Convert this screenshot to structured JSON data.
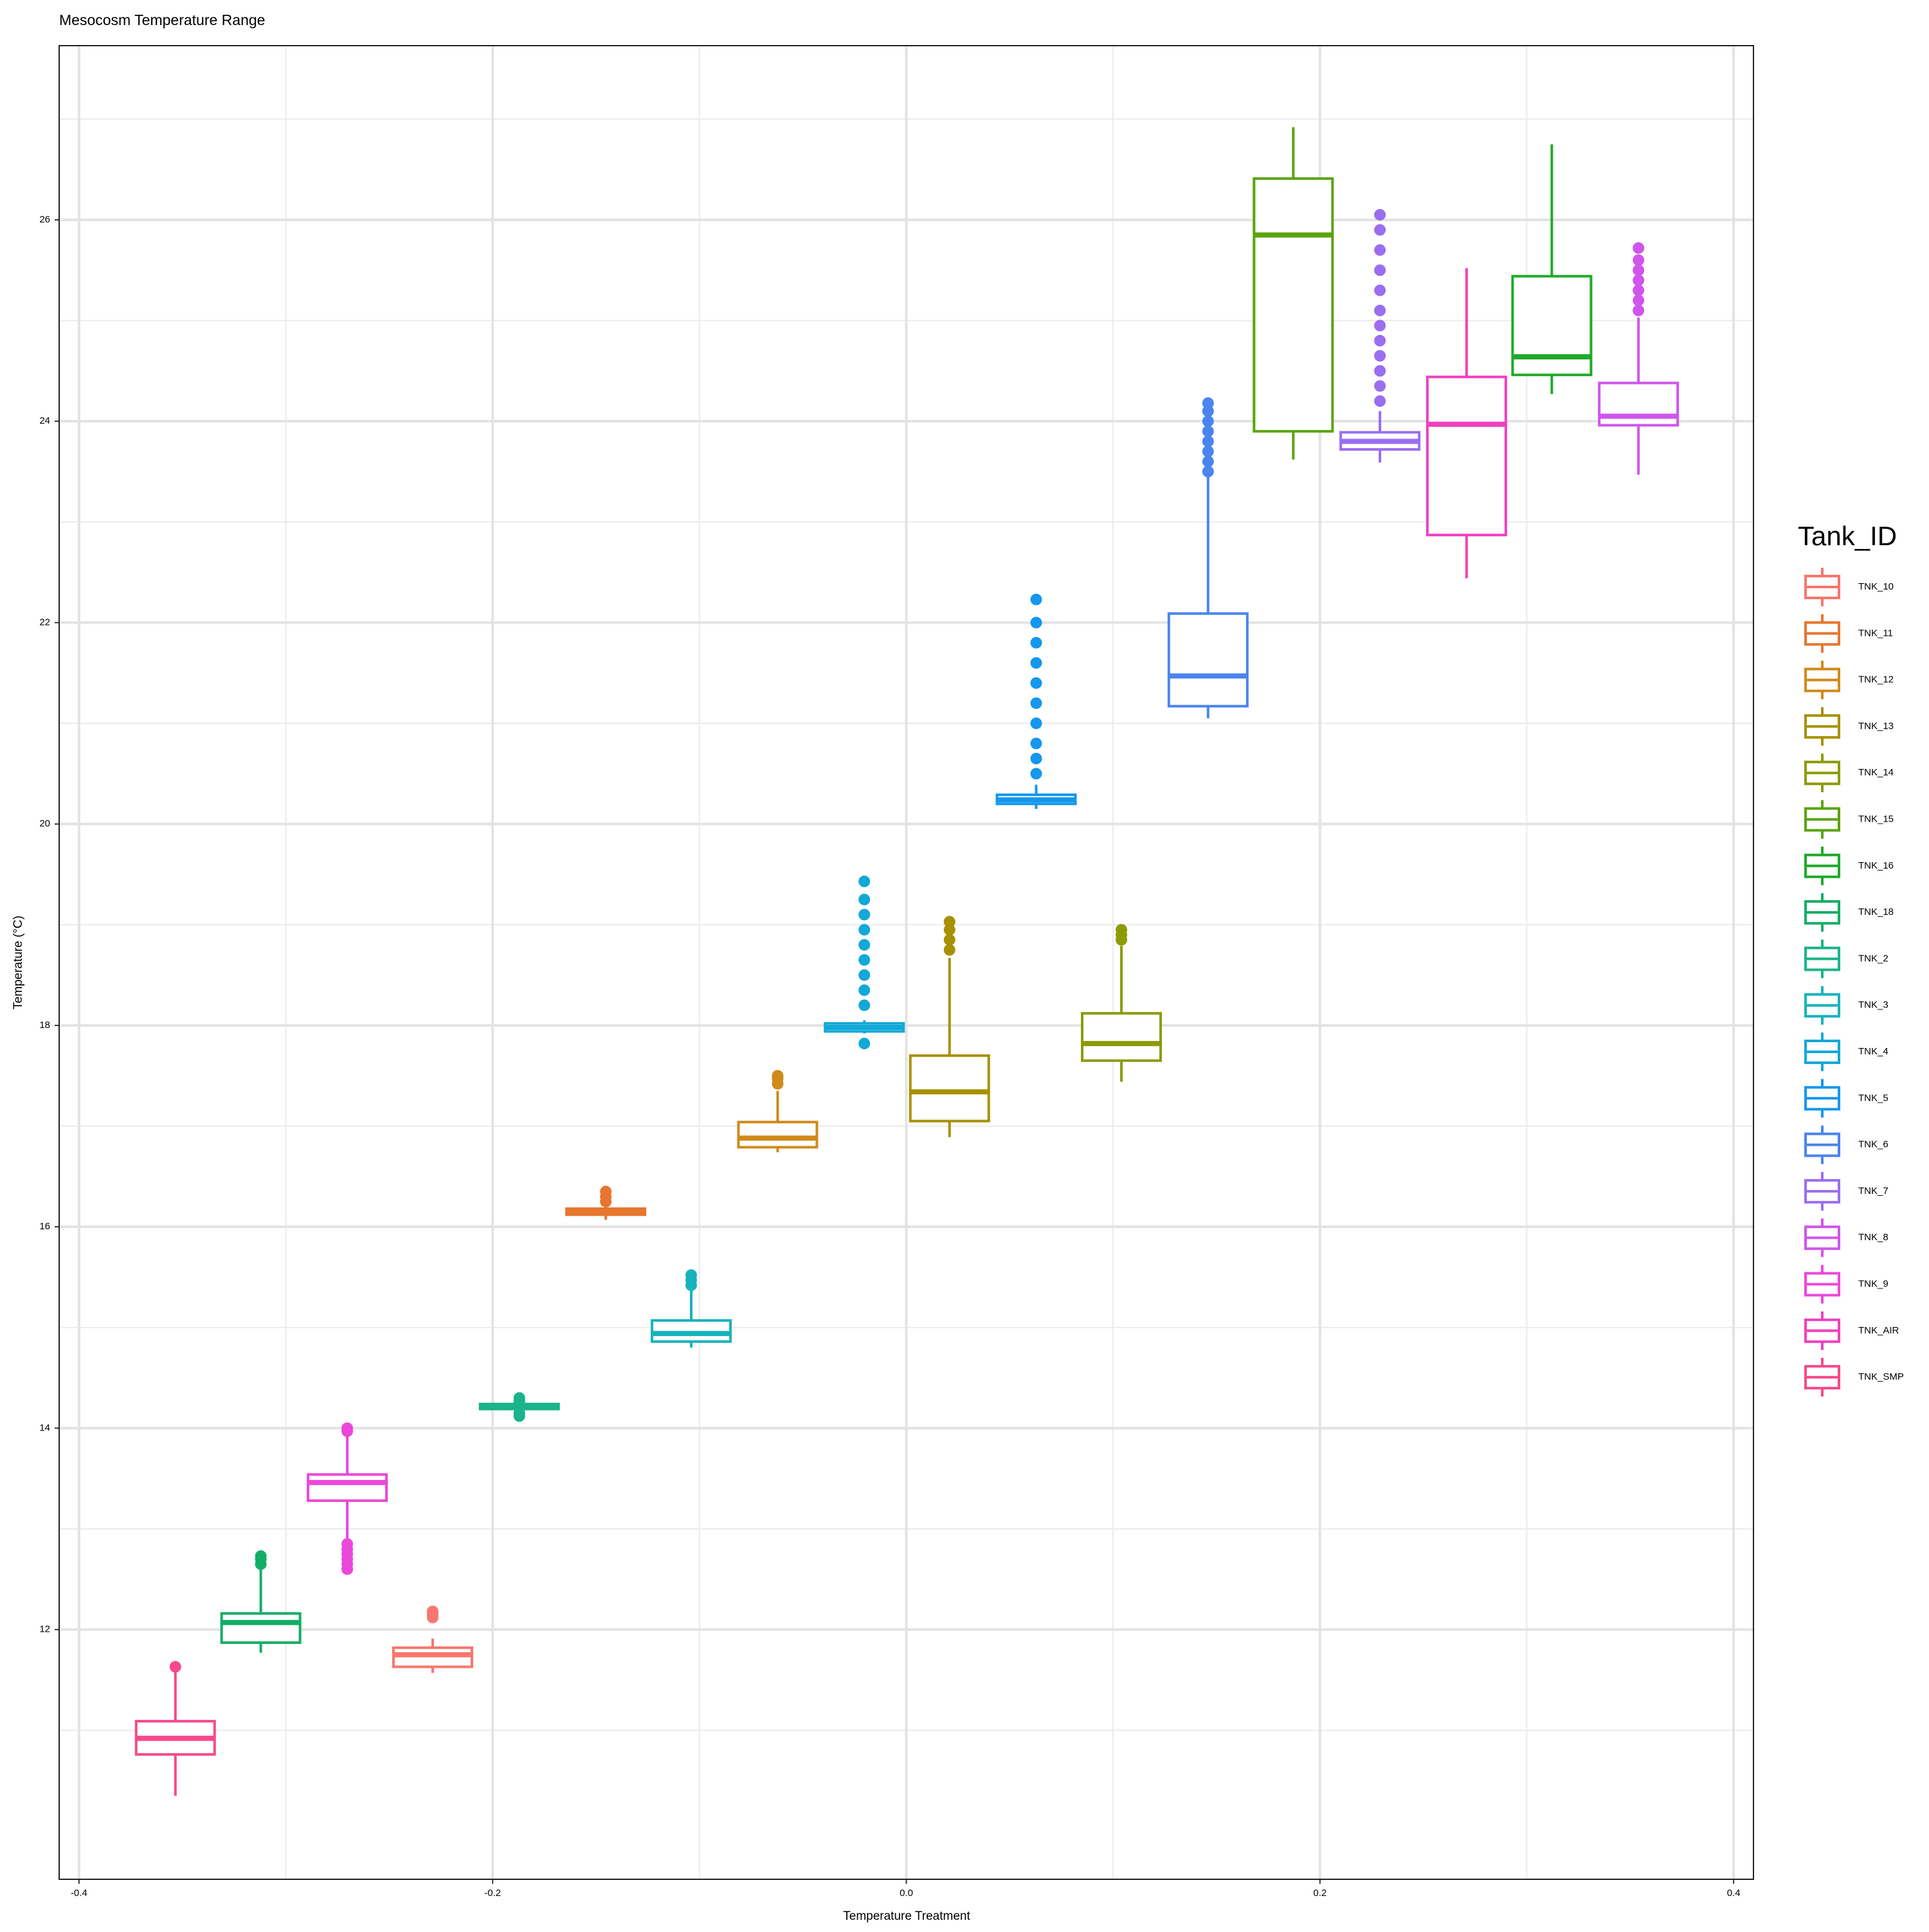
{
  "chart_data": {
    "type": "boxplot",
    "title": "Mesocosm Temperature Range",
    "x_label": "Temperature Treatment",
    "y_label": "Temperature (°C)",
    "legend_title": "Tank_ID",
    "legend_position": "right",
    "grid": true,
    "xlim": [
      -0.4096,
      0.4096
    ],
    "xticks": [
      -0.4,
      -0.2,
      {
        "value": 0,
        "label": "0.0"
      },
      0.2,
      0.4
    ],
    "ylim": [
      9.52,
      27.73
    ],
    "yticks": [
      12,
      14,
      16,
      18,
      20,
      22,
      24,
      26
    ],
    "series": [
      {
        "name": "TNK_10",
        "color": "#F8766D",
        "x": -0.229,
        "whisker_low": 11.57,
        "q1": 11.63,
        "median": 11.75,
        "q3": 11.82,
        "whisker_high": 11.91,
        "outliers": [
          12.12,
          12.15,
          12.18
        ]
      },
      {
        "name": "TNK_11",
        "color": "#E7762E",
        "x": -0.1453,
        "whisker_low": 16.07,
        "q1": 16.12,
        "median": 16.15,
        "q3": 16.18,
        "whisker_high": 16.2,
        "outliers": [
          16.25,
          16.3,
          16.35
        ]
      },
      {
        "name": "TNK_12",
        "color": "#D08A1B",
        "x": -0.0622,
        "whisker_low": 16.74,
        "q1": 16.79,
        "median": 16.88,
        "q3": 17.04,
        "whisker_high": 17.35,
        "outliers": [
          17.42,
          17.47,
          17.5
        ]
      },
      {
        "name": "TNK_13",
        "color": "#A89100",
        "x": 0.0209,
        "whisker_low": 16.89,
        "q1": 17.05,
        "median": 17.34,
        "q3": 17.7,
        "whisker_high": 18.67,
        "outliers": [
          18.75,
          18.85,
          18.95,
          19.03
        ]
      },
      {
        "name": "TNK_14",
        "color": "#8D9B08",
        "x": 0.104,
        "whisker_low": 17.44,
        "q1": 17.65,
        "median": 17.82,
        "q3": 18.12,
        "whisker_high": 18.79,
        "outliers": [
          18.85,
          18.9,
          18.95
        ]
      },
      {
        "name": "TNK_15",
        "color": "#5AA30C",
        "x": 0.1871,
        "whisker_low": 23.62,
        "q1": 23.9,
        "median": 25.85,
        "q3": 26.41,
        "whisker_high": 26.92,
        "outliers": []
      },
      {
        "name": "TNK_16",
        "color": "#1EAA2A",
        "x": 0.3121,
        "whisker_low": 24.27,
        "q1": 24.46,
        "median": 24.64,
        "q3": 25.44,
        "whisker_high": 26.75,
        "outliers": []
      },
      {
        "name": "TNK_18",
        "color": "#12AE66",
        "x": -0.3121,
        "whisker_low": 11.77,
        "q1": 11.87,
        "median": 12.07,
        "q3": 12.16,
        "whisker_high": 12.61,
        "outliers": [
          12.65,
          12.7,
          12.73
        ]
      },
      {
        "name": "TNK_2",
        "color": "#1AB38A",
        "x": -0.1871,
        "whisker_low": 14.18,
        "q1": 14.19,
        "median": 14.22,
        "q3": 14.24,
        "whisker_high": 14.25,
        "outliers": [
          14.12,
          14.15,
          14.27,
          14.3
        ]
      },
      {
        "name": "TNK_3",
        "color": "#16B3BD",
        "x": -0.104,
        "whisker_low": 14.8,
        "q1": 14.86,
        "median": 14.94,
        "q3": 15.07,
        "whisker_high": 15.37,
        "outliers": [
          15.42,
          15.47,
          15.52
        ]
      },
      {
        "name": "TNK_4",
        "color": "#12A8D8",
        "x": -0.0203,
        "whisker_low": 17.92,
        "q1": 17.94,
        "median": 17.98,
        "q3": 18.02,
        "whisker_high": 18.05,
        "outliers": [
          17.82,
          18.2,
          18.35,
          18.5,
          18.65,
          18.8,
          18.95,
          19.1,
          19.25,
          19.43
        ]
      },
      {
        "name": "TNK_5",
        "color": "#1497EC",
        "x": 0.0628,
        "whisker_low": 20.15,
        "q1": 20.2,
        "median": 20.24,
        "q3": 20.29,
        "whisker_high": 20.39,
        "outliers": [
          20.5,
          20.65,
          20.8,
          21.0,
          21.2,
          21.4,
          21.6,
          21.8,
          22.0,
          22.23
        ]
      },
      {
        "name": "TNK_6",
        "color": "#4A84EE",
        "x": 0.1459,
        "whisker_low": 21.05,
        "q1": 21.17,
        "median": 21.47,
        "q3": 22.09,
        "whisker_high": 23.46,
        "outliers": [
          23.5,
          23.6,
          23.7,
          23.8,
          23.9,
          24.0,
          24.1,
          24.18
        ]
      },
      {
        "name": "TNK_7",
        "color": "#9A6EF0",
        "x": 0.229,
        "whisker_low": 23.59,
        "q1": 23.72,
        "median": 23.8,
        "q3": 23.89,
        "whisker_high": 24.1,
        "outliers": [
          24.2,
          24.35,
          24.5,
          24.65,
          24.8,
          24.95,
          25.1,
          25.3,
          25.5,
          25.7,
          25.9,
          26.05
        ]
      },
      {
        "name": "TNK_8",
        "color": "#D055EC",
        "x": 0.354,
        "whisker_low": 23.47,
        "q1": 23.96,
        "median": 24.05,
        "q3": 24.38,
        "whisker_high": 25.03,
        "outliers": [
          25.1,
          25.2,
          25.3,
          25.4,
          25.5,
          25.6,
          25.72
        ]
      },
      {
        "name": "TNK_9",
        "color": "#EC47DA",
        "x": -0.2703,
        "whisker_low": 12.86,
        "q1": 13.28,
        "median": 13.46,
        "q3": 13.54,
        "whisker_high": 13.94,
        "outliers": [
          12.6,
          12.65,
          12.7,
          12.75,
          12.8,
          12.85,
          13.97,
          14.0
        ]
      },
      {
        "name": "TNK_AIR",
        "color": "#F040BE",
        "x": 0.2709,
        "whisker_low": 22.44,
        "q1": 22.87,
        "median": 23.97,
        "q3": 24.44,
        "whisker_high": 25.52,
        "outliers": []
      },
      {
        "name": "TNK_SMP",
        "color": "#F64A8A",
        "x": -0.3534,
        "whisker_low": 10.35,
        "q1": 10.76,
        "median": 10.92,
        "q3": 11.09,
        "whisker_high": 11.58,
        "outliers": [
          11.63
        ]
      }
    ]
  }
}
